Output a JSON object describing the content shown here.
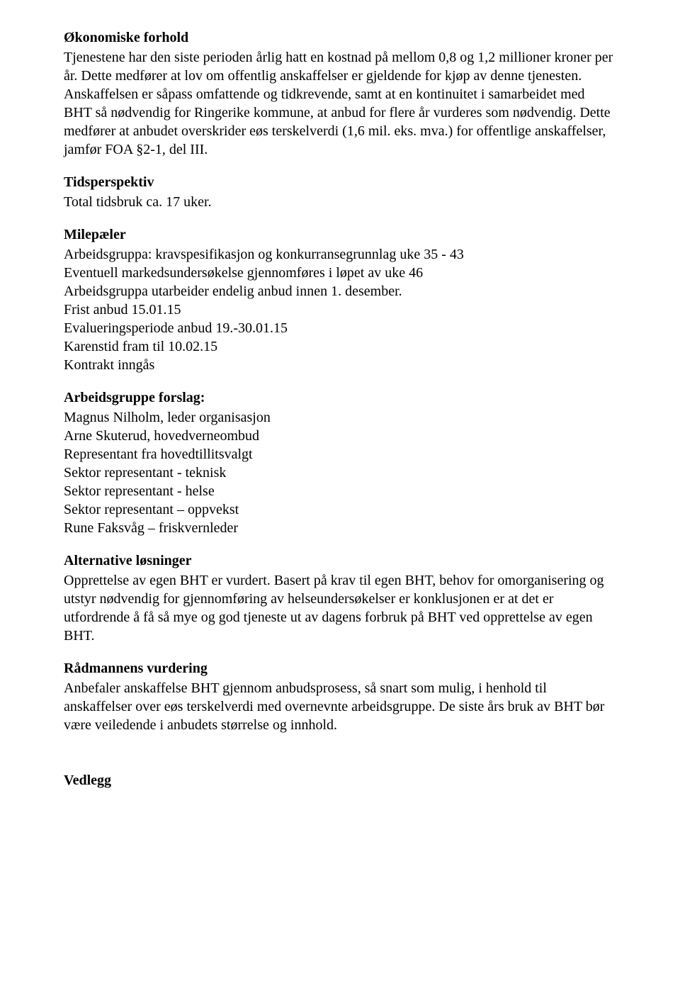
{
  "sections": {
    "okonomiske": {
      "title": "Økonomiske forhold",
      "body": "Tjenestene har den siste perioden årlig hatt en kostnad på mellom 0,8 og 1,2 millioner kroner per år. Dette medfører at lov om offentlig anskaffelser er gjeldende for kjøp av denne tjenesten. Anskaffelsen er såpass omfattende og tidkrevende, samt at en kontinuitet i samarbeidet med BHT så nødvendig for Ringerike kommune, at anbud for flere år vurderes som nødvendig. Dette medfører at anbudet overskrider eøs terskelverdi (1,6 mil. eks. mva.) for offentlige anskaffelser, jamfør FOA §2-1, del III."
    },
    "tidsperspektiv": {
      "title": "Tidsperspektiv",
      "body": "Total tidsbruk ca. 17 uker."
    },
    "milepaeler": {
      "title": "Milepæler",
      "lines": [
        "Arbeidsgruppa: kravspesifikasjon og konkurransegrunnlag uke 35 - 43",
        "Eventuell markedsundersøkelse gjennomføres i løpet av uke 46",
        "Arbeidsgruppa utarbeider endelig anbud innen 1. desember.",
        "Frist anbud 15.01.15",
        "Evalueringsperiode anbud 19.-30.01.15",
        "Karenstid fram til 10.02.15",
        "Kontrakt inngås"
      ]
    },
    "arbeidsgruppe": {
      "title": "Arbeidsgruppe forslag:",
      "lines": [
        "Magnus Nilholm, leder organisasjon",
        "Arne Skuterud, hovedverneombud",
        "Representant fra hovedtillitsvalgt",
        "Sektor representant - teknisk",
        "Sektor representant - helse",
        "Sektor representant – oppvekst",
        "Rune Faksvåg – friskvernleder"
      ]
    },
    "alternative": {
      "title": "Alternative løsninger",
      "body": "Opprettelse av egen BHT er vurdert. Basert på krav til egen BHT, behov for omorganisering og utstyr nødvendig for gjennomføring av helseundersøkelser er konklusjonen er at det er utfordrende å få så mye og god tjeneste ut av dagens forbruk på BHT ved opprettelse av egen BHT."
    },
    "radmannens": {
      "title": "Rådmannens vurdering",
      "body": "Anbefaler anskaffelse BHT gjennom anbudsprosess, så snart som mulig, i henhold til anskaffelser over eøs terskelverdi med overnevnte arbeidsgruppe. De siste års bruk av BHT bør være veiledende i anbudets størrelse og innhold."
    },
    "vedlegg": {
      "title": "Vedlegg"
    }
  }
}
